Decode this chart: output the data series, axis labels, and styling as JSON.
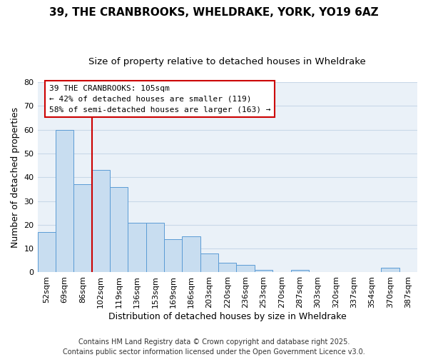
{
  "title": "39, THE CRANBROOKS, WHELDRAKE, YORK, YO19 6AZ",
  "subtitle": "Size of property relative to detached houses in Wheldrake",
  "xlabel": "Distribution of detached houses by size in Wheldrake",
  "ylabel": "Number of detached properties",
  "bar_color": "#c8ddf0",
  "bar_edge_color": "#5b9bd5",
  "background_color": "#ffffff",
  "axes_bg_color": "#eaf1f8",
  "grid_color": "#c8d8e8",
  "categories": [
    "52sqm",
    "69sqm",
    "86sqm",
    "102sqm",
    "119sqm",
    "136sqm",
    "153sqm",
    "169sqm",
    "186sqm",
    "203sqm",
    "220sqm",
    "236sqm",
    "253sqm",
    "270sqm",
    "287sqm",
    "303sqm",
    "320sqm",
    "337sqm",
    "354sqm",
    "370sqm",
    "387sqm"
  ],
  "values": [
    17,
    60,
    37,
    43,
    36,
    21,
    21,
    14,
    15,
    8,
    4,
    3,
    1,
    0,
    1,
    0,
    0,
    0,
    0,
    2,
    0
  ],
  "ylim": [
    0,
    80
  ],
  "yticks": [
    0,
    10,
    20,
    30,
    40,
    50,
    60,
    70,
    80
  ],
  "vline_bar_index": 3,
  "vline_color": "#cc0000",
  "annotation_title": "39 THE CRANBROOKS: 105sqm",
  "annotation_line1": "← 42% of detached houses are smaller (119)",
  "annotation_line2": "58% of semi-detached houses are larger (163) →",
  "footer1": "Contains HM Land Registry data © Crown copyright and database right 2025.",
  "footer2": "Contains public sector information licensed under the Open Government Licence v3.0.",
  "title_fontsize": 11,
  "subtitle_fontsize": 9.5,
  "xlabel_fontsize": 9,
  "ylabel_fontsize": 9,
  "tick_fontsize": 8,
  "annotation_fontsize": 8,
  "footer_fontsize": 7
}
